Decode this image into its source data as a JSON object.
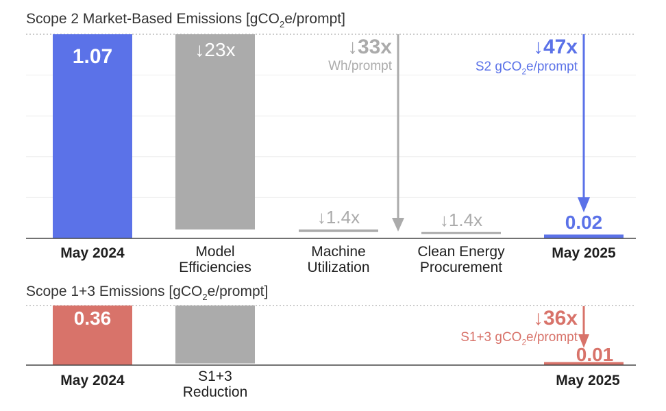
{
  "chart_data": [
    {
      "type": "bar",
      "subtype": "waterfall",
      "title_parts": [
        "Scope 2 Market-Based Emissions [gCO",
        "2",
        "e/prompt]"
      ],
      "categories": [
        [
          "May 2024"
        ],
        [
          "Model",
          "Efficiencies"
        ],
        [
          "Machine",
          "Utilization"
        ],
        [
          "Clean Energy",
          "Procurement"
        ],
        [
          "May 2025"
        ]
      ],
      "values": [
        1.07,
        0.0465,
        0.0332,
        0.0233,
        0.02
      ],
      "ylim": [
        0,
        1.07
      ],
      "grid": true,
      "value_labels": {
        "start": "1.07",
        "end": "0.02"
      },
      "step_labels": [
        "↓23x",
        "↓1.4x",
        "↓1.4x"
      ],
      "callouts": [
        {
          "text": "↓33x",
          "subtext": "Wh/prompt"
        },
        {
          "text": "↓47x",
          "subtext_parts": [
            "S2 gCO",
            "2",
            "e/prompt"
          ]
        }
      ]
    },
    {
      "type": "bar",
      "subtype": "waterfall",
      "title_parts": [
        "Scope 1+3 Emissions [gCO",
        "2",
        "e/prompt]"
      ],
      "categories": [
        [
          "May 2024"
        ],
        [
          "S1+3",
          "Reduction"
        ],
        [
          "May 2025"
        ]
      ],
      "values": [
        0.36,
        0.35,
        0.01
      ],
      "ylim": [
        0,
        0.36
      ],
      "grid": true,
      "value_labels": {
        "start": "0.36",
        "end": "0.01"
      },
      "callouts": [
        {
          "text": "↓36x",
          "subtext_parts": [
            "S1+3 gCO",
            "2",
            "e/prompt"
          ]
        }
      ]
    }
  ],
  "colors": {
    "blue": "#5b72e8",
    "gray": "#ababab",
    "red": "#d8736a",
    "text": "#1f1f1f",
    "title": "#333333",
    "grid": "#eeeeee",
    "axis": "#444444"
  }
}
